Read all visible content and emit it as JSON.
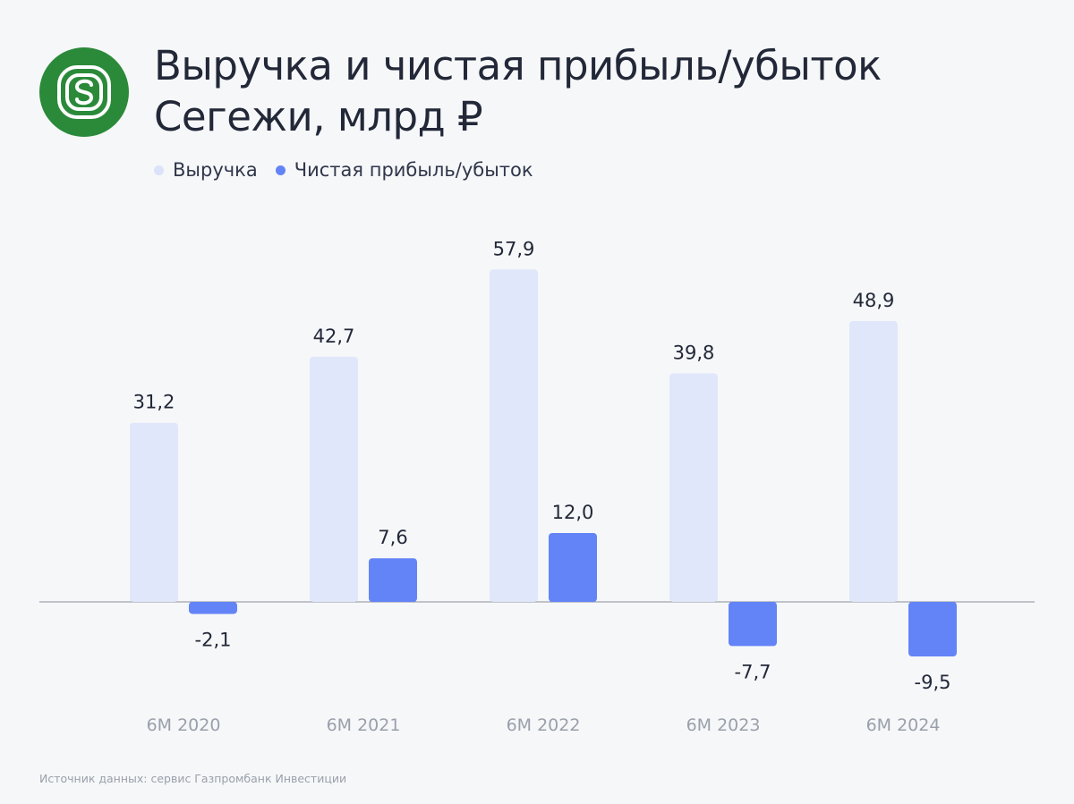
{
  "title_line1": "Выручка и чистая прибыль/убыток",
  "title_line2": "Сегежи, млрд ₽",
  "source": "Источник данных: сервис Газпромбанк Инвестиции",
  "icons": {
    "logo": "segezha-logo-icon"
  },
  "colors": {
    "revenue": "#e1e7fb",
    "net": "#6384f7",
    "logo_bg": "#2b8a3a",
    "axis": "#8a8f99"
  },
  "chart_data": {
    "type": "bar",
    "categories": [
      "6М 2020",
      "6М 2021",
      "6М 2022",
      "6М 2023",
      "6М 2024"
    ],
    "series": [
      {
        "name": "Выручка",
        "values": [
          31.2,
          42.7,
          57.9,
          39.8,
          48.9
        ],
        "labels": [
          "31,2",
          "42,7",
          "57,9",
          "39,8",
          "48,9"
        ]
      },
      {
        "name": "Чистая прибыль/убыток",
        "values": [
          -2.1,
          7.6,
          12.0,
          -7.7,
          -9.5
        ],
        "labels": [
          "-2,1",
          "7,6",
          "12,0",
          "-7,7",
          "-9,5"
        ]
      }
    ],
    "legend": "top-left",
    "grid": false
  }
}
